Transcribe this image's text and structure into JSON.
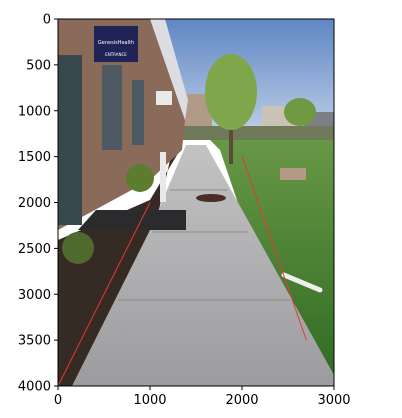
{
  "chart_data": {
    "type": "image",
    "title": "",
    "xlabel": "",
    "ylabel": "",
    "xlim": [
      0,
      3000
    ],
    "ylim": [
      4000,
      0
    ],
    "y_inverted": true,
    "grid": false,
    "x_ticks": [
      0,
      1000,
      2000,
      3000
    ],
    "y_ticks": [
      0,
      500,
      1000,
      1500,
      2000,
      2500,
      3000,
      3500,
      4000
    ],
    "image_description_colors": {
      "sky": "#7d9fd0",
      "building_brick": "#8a6b5a",
      "sidewalk": "#a8a8aa",
      "grass": "#3f7a2d",
      "mulch": "#3a2e28",
      "guide_line": "#e53935"
    },
    "overlay_lines": [
      {
        "name": "left-guide",
        "points": [
          [
            0,
            4000
          ],
          [
            1000,
            2000
          ]
        ]
      },
      {
        "name": "right-guide",
        "points": [
          [
            2000,
            1500
          ],
          [
            2700,
            3500
          ]
        ]
      }
    ],
    "signs": {
      "main_sign_line1": "GenesisHealth",
      "main_sign_line2": "ENTRANCE"
    }
  }
}
